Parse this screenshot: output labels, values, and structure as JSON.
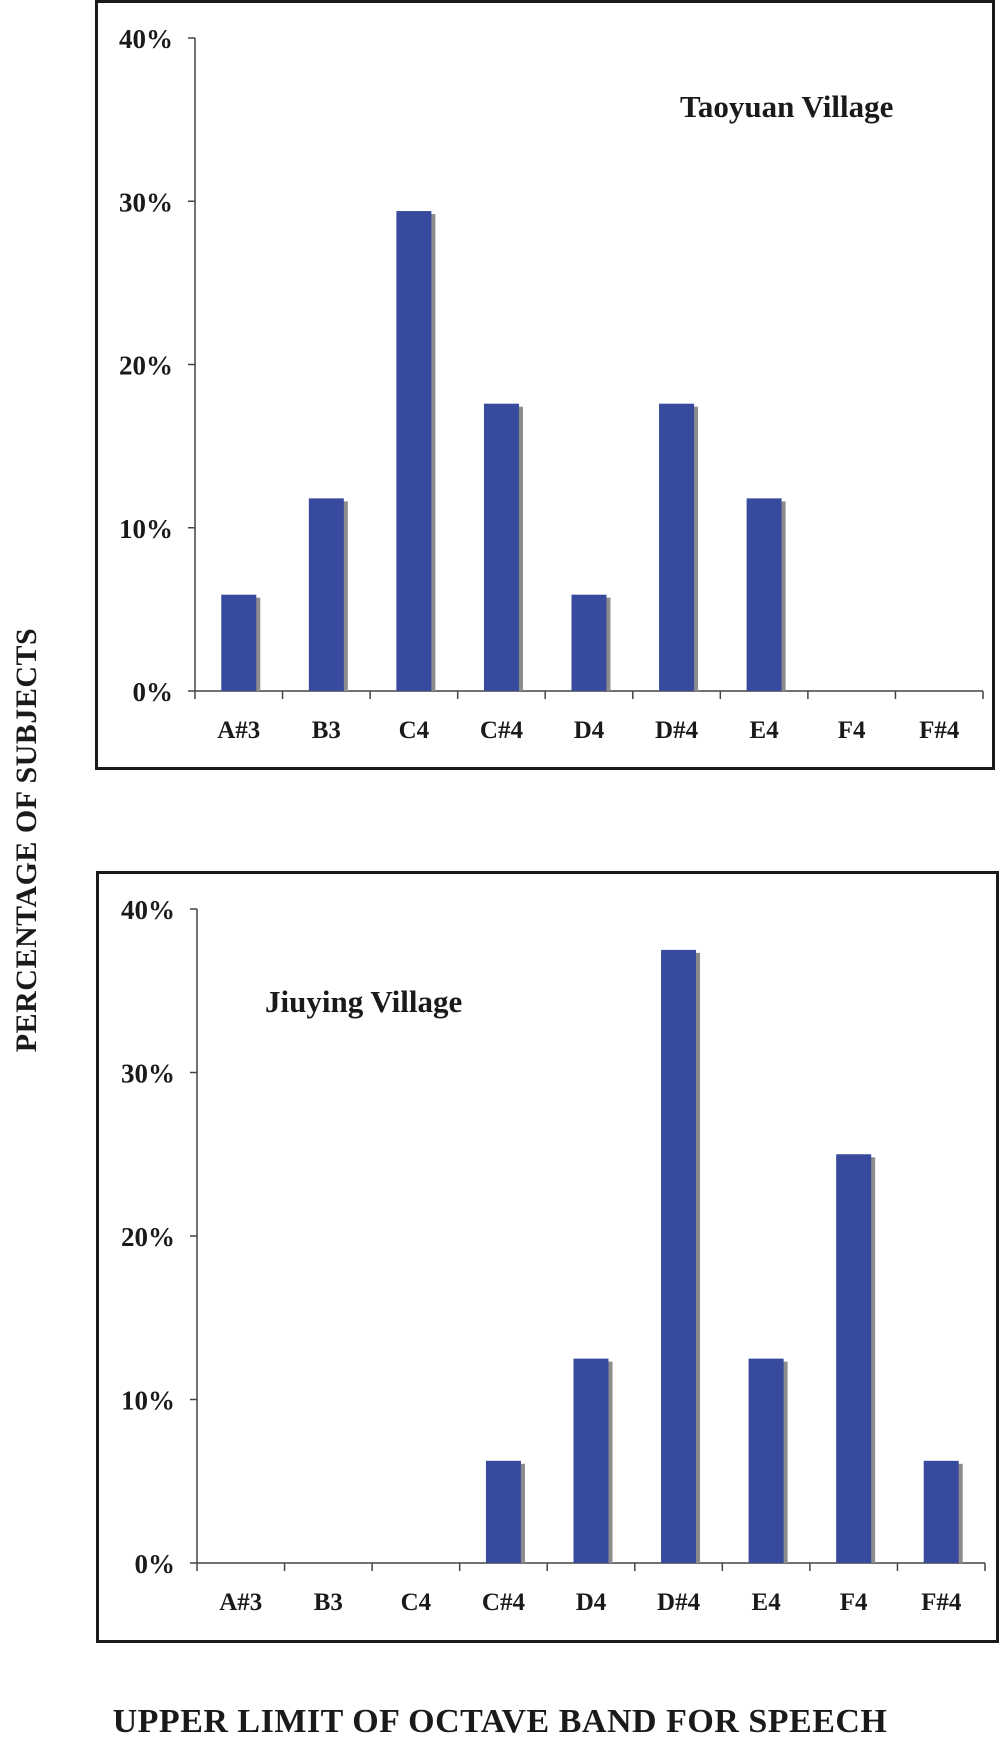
{
  "figure": {
    "y_axis_label": "PERCENTAGE OF SUBJECTS",
    "x_axis_label": "UPPER LIMIT OF OCTAVE BAND FOR SPEECH",
    "bar_color": "#384a9e",
    "shadow_color": "#8c8c8c"
  },
  "chart_data": [
    {
      "type": "bar",
      "title": "Taoyuan Village",
      "xlabel": "UPPER LIMIT OF OCTAVE BAND FOR SPEECH",
      "ylabel": "PERCENTAGE OF SUBJECTS",
      "categories": [
        "A#3",
        "B3",
        "C4",
        "C#4",
        "D4",
        "D#4",
        "E4",
        "F4",
        "F#4"
      ],
      "values": [
        5.9,
        11.8,
        29.4,
        17.6,
        5.9,
        17.6,
        11.8,
        0,
        0
      ],
      "ylim": [
        0,
        40
      ],
      "yticks": [
        "0%",
        "10%",
        "20%",
        "30%",
        "40%"
      ],
      "grid": false,
      "legend": null
    },
    {
      "type": "bar",
      "title": "Jiuying Village",
      "xlabel": "UPPER LIMIT OF OCTAVE BAND FOR SPEECH",
      "ylabel": "PERCENTAGE OF SUBJECTS",
      "categories": [
        "A#3",
        "B3",
        "C4",
        "C#4",
        "D4",
        "D#4",
        "E4",
        "F4",
        "F#4"
      ],
      "values": [
        0,
        0,
        0,
        6.25,
        12.5,
        37.5,
        12.5,
        25,
        6.25
      ],
      "ylim": [
        0,
        40
      ],
      "yticks": [
        "0%",
        "10%",
        "20%",
        "30%",
        "40%"
      ],
      "grid": false,
      "legend": null
    }
  ]
}
